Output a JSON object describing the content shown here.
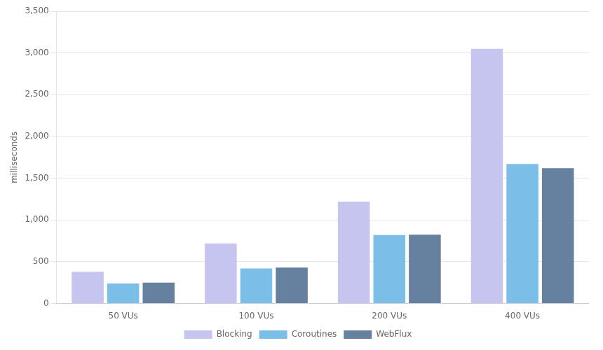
{
  "chart_data": {
    "type": "bar",
    "categories": [
      "50 VUs",
      "100 VUs",
      "200 VUs",
      "400 VUs"
    ],
    "series": [
      {
        "name": "Blocking",
        "color": "#c5c5f0",
        "values": [
          380,
          720,
          1220,
          3050
        ]
      },
      {
        "name": "Coroutines",
        "color": "#7bbfe8",
        "values": [
          240,
          420,
          820,
          1670
        ]
      },
      {
        "name": "WebFlux",
        "color": "#6680a0",
        "values": [
          250,
          430,
          825,
          1620
        ]
      }
    ],
    "ylabel": "milliseconds",
    "ylim": [
      0,
      3500
    ],
    "yticks": [
      0,
      500,
      {
        "value": 1000,
        "label": "1,000"
      },
      {
        "value": 1500,
        "label": "1,500"
      },
      {
        "value": 2000,
        "label": "2,000"
      },
      {
        "value": 2500,
        "label": "2,500"
      },
      {
        "value": 3000,
        "label": "3,000"
      },
      {
        "value": 3500,
        "label": "3,500"
      }
    ],
    "grid": true,
    "legend": "bottom"
  }
}
